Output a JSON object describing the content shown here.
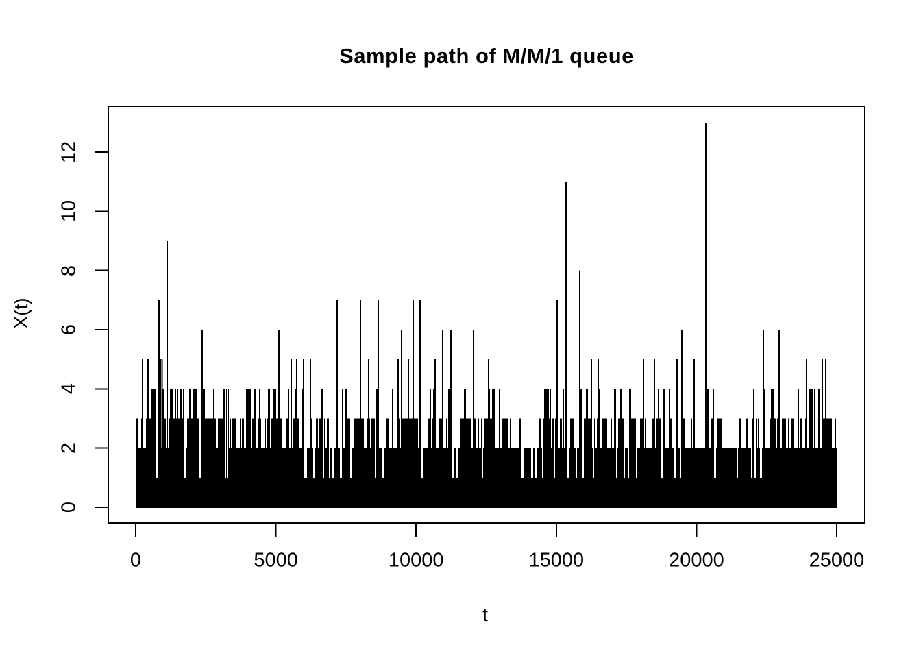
{
  "page": {
    "background": "#ffffff",
    "foreground": "#000000"
  },
  "chart_data": {
    "type": "line",
    "subtype": "step-function-sample-path",
    "title": "Sample path of M/M/1 queue",
    "xlabel": "t",
    "ylabel": "X(t)",
    "xlim": [
      0,
      25000
    ],
    "ylim": [
      0,
      13
    ],
    "x_ticks": [
      0,
      5000,
      10000,
      15000,
      20000,
      25000
    ],
    "y_ticks": [
      0,
      2,
      4,
      6,
      8,
      10,
      12
    ],
    "line_color": "#000000",
    "background": "#ffffff",
    "grid": false,
    "legend": false,
    "description": "Dense black step process oscillating rapidly between 0 and ~3 customers over t in [0,25000]; appears as a nearly solid band from 0 to 2 with frequent excursions to 3-4 and occasional tall thin spikes.",
    "density_profile": {
      "level1_coverage": 1.0,
      "level2_coverage": 0.9,
      "level3_coverage": 0.48,
      "level4_coverage": 0.13
    },
    "sparse_regions_t": [
      [
        13250,
        14500
      ],
      [
        20750,
        21900
      ]
    ],
    "idle_gaps_t": [
      10120
    ],
    "max_value": 13,
    "max_value_t": 20334,
    "notable_peaks": [
      {
        "t": 244,
        "x": 5
      },
      {
        "t": 440,
        "x": 5
      },
      {
        "t": 587,
        "x": 4
      },
      {
        "t": 831,
        "x": 7
      },
      {
        "t": 880,
        "x": 5
      },
      {
        "t": 940,
        "x": 5
      },
      {
        "t": 1124,
        "x": 9
      },
      {
        "t": 1246,
        "x": 4
      },
      {
        "t": 1711,
        "x": 4
      },
      {
        "t": 2077,
        "x": 4
      },
      {
        "t": 2151,
        "x": 4
      },
      {
        "t": 2371,
        "x": 6
      },
      {
        "t": 3153,
        "x": 4
      },
      {
        "t": 3300,
        "x": 4
      },
      {
        "t": 4008,
        "x": 4
      },
      {
        "t": 4424,
        "x": 4
      },
      {
        "t": 5108,
        "x": 6
      },
      {
        "t": 5548,
        "x": 5
      },
      {
        "t": 5744,
        "x": 5
      },
      {
        "t": 5988,
        "x": 5
      },
      {
        "t": 6232,
        "x": 5
      },
      {
        "t": 6648,
        "x": 4
      },
      {
        "t": 7186,
        "x": 7
      },
      {
        "t": 7503,
        "x": 4
      },
      {
        "t": 8016,
        "x": 7
      },
      {
        "t": 8310,
        "x": 5
      },
      {
        "t": 8652,
        "x": 7
      },
      {
        "t": 9165,
        "x": 4
      },
      {
        "t": 9361,
        "x": 5
      },
      {
        "t": 9483,
        "x": 6
      },
      {
        "t": 9727,
        "x": 5
      },
      {
        "t": 9898,
        "x": 7
      },
      {
        "t": 10143,
        "x": 7
      },
      {
        "t": 10680,
        "x": 5
      },
      {
        "t": 10950,
        "x": 6
      },
      {
        "t": 11243,
        "x": 6
      },
      {
        "t": 12050,
        "x": 6
      },
      {
        "t": 12587,
        "x": 5
      },
      {
        "t": 14640,
        "x": 4
      },
      {
        "t": 14786,
        "x": 4
      },
      {
        "t": 15030,
        "x": 7
      },
      {
        "t": 15348,
        "x": 11
      },
      {
        "t": 15837,
        "x": 8
      },
      {
        "t": 16253,
        "x": 5
      },
      {
        "t": 16497,
        "x": 5
      },
      {
        "t": 17304,
        "x": 4
      },
      {
        "t": 17646,
        "x": 4
      },
      {
        "t": 18110,
        "x": 5
      },
      {
        "t": 18501,
        "x": 5
      },
      {
        "t": 19308,
        "x": 5
      },
      {
        "t": 19479,
        "x": 6
      },
      {
        "t": 19919,
        "x": 5
      },
      {
        "t": 20334,
        "x": 13
      },
      {
        "t": 20603,
        "x": 4
      },
      {
        "t": 22045,
        "x": 4
      },
      {
        "t": 22387,
        "x": 6
      },
      {
        "t": 22680,
        "x": 4
      },
      {
        "t": 22949,
        "x": 6
      },
      {
        "t": 23633,
        "x": 4
      },
      {
        "t": 23927,
        "x": 5
      },
      {
        "t": 24122,
        "x": 4
      },
      {
        "t": 24489,
        "x": 5
      },
      {
        "t": 24611,
        "x": 5
      }
    ]
  }
}
